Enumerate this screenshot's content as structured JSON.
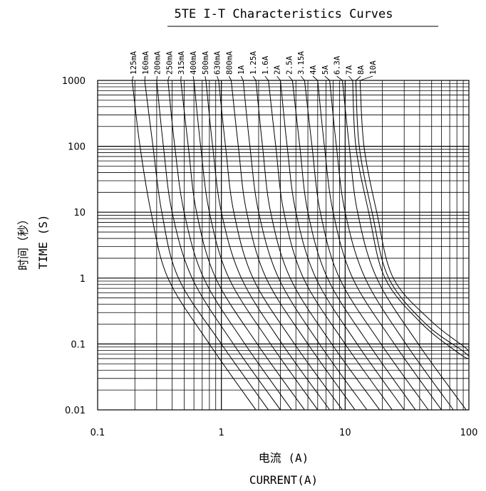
{
  "chart_data": {
    "type": "line",
    "title": "5TE I-T Characteristics Curves",
    "xlabel": "电流 (A)",
    "xlabel_en": "CURRENT(A)",
    "ylabel": "时间（秒）",
    "ylabel_en": "TIME (S)",
    "x_scale": "log",
    "y_scale": "log",
    "xlim": [
      0.1,
      100
    ],
    "ylim": [
      0.01,
      1000
    ],
    "grid": true,
    "x_ticks": [
      "0.1",
      "1",
      "10",
      "100"
    ],
    "y_ticks": [
      "1000",
      "100",
      "10",
      "1",
      "0.1",
      "0.01"
    ],
    "series": [
      {
        "name": "125mA",
        "points": [
          [
            0.19,
            1000
          ],
          [
            0.22,
            100
          ],
          [
            0.27,
            10
          ],
          [
            0.37,
            1
          ],
          [
            0.8,
            0.1
          ],
          [
            1.9,
            0.01
          ]
        ]
      },
      {
        "name": "160mA",
        "points": [
          [
            0.24,
            1000
          ],
          [
            0.28,
            100
          ],
          [
            0.33,
            10
          ],
          [
            0.45,
            1
          ],
          [
            1.0,
            0.1
          ],
          [
            2.4,
            0.01
          ]
        ]
      },
      {
        "name": "200mA",
        "points": [
          [
            0.3,
            1000
          ],
          [
            0.34,
            100
          ],
          [
            0.4,
            10
          ],
          [
            0.58,
            1
          ],
          [
            1.25,
            0.1
          ],
          [
            3.0,
            0.01
          ]
        ]
      },
      {
        "name": "250mA",
        "points": [
          [
            0.37,
            1000
          ],
          [
            0.42,
            100
          ],
          [
            0.5,
            10
          ],
          [
            0.72,
            1
          ],
          [
            1.55,
            0.1
          ],
          [
            3.7,
            0.01
          ]
        ]
      },
      {
        "name": "315mA",
        "points": [
          [
            0.47,
            1000
          ],
          [
            0.54,
            100
          ],
          [
            0.63,
            10
          ],
          [
            0.9,
            1
          ],
          [
            1.95,
            0.1
          ],
          [
            4.7,
            0.01
          ]
        ]
      },
      {
        "name": "400mA",
        "points": [
          [
            0.6,
            1000
          ],
          [
            0.68,
            100
          ],
          [
            0.8,
            10
          ],
          [
            1.15,
            1
          ],
          [
            2.5,
            0.1
          ],
          [
            6.0,
            0.01
          ]
        ]
      },
      {
        "name": "500mA",
        "points": [
          [
            0.75,
            1000
          ],
          [
            0.85,
            100
          ],
          [
            1.0,
            10
          ],
          [
            1.45,
            1
          ],
          [
            3.1,
            0.1
          ],
          [
            7.5,
            0.01
          ]
        ]
      },
      {
        "name": "630mA",
        "points": [
          [
            0.95,
            1000
          ],
          [
            1.08,
            100
          ],
          [
            1.26,
            10
          ],
          [
            1.8,
            1
          ],
          [
            3.9,
            0.1
          ],
          [
            9.5,
            0.01
          ]
        ]
      },
      {
        "name": "800mA",
        "points": [
          [
            1.2,
            1000
          ],
          [
            1.37,
            100
          ],
          [
            1.6,
            10
          ],
          [
            2.3,
            1
          ],
          [
            5.0,
            0.1
          ],
          [
            12,
            0.01
          ]
        ]
      },
      {
        "name": "1A",
        "points": [
          [
            1.5,
            1000
          ],
          [
            1.7,
            100
          ],
          [
            2.0,
            10
          ],
          [
            2.9,
            1
          ],
          [
            6.2,
            0.1
          ],
          [
            15,
            0.01
          ]
        ]
      },
      {
        "name": "1.25A",
        "points": [
          [
            1.9,
            1000
          ],
          [
            2.15,
            100
          ],
          [
            2.5,
            10
          ],
          [
            3.6,
            1
          ],
          [
            7.8,
            0.1
          ],
          [
            19,
            0.01
          ]
        ]
      },
      {
        "name": "1.6A",
        "points": [
          [
            2.4,
            1000
          ],
          [
            2.75,
            100
          ],
          [
            3.2,
            10
          ],
          [
            4.6,
            1
          ],
          [
            10,
            0.1
          ],
          [
            24,
            0.01
          ]
        ]
      },
      {
        "name": "2A",
        "points": [
          [
            3.0,
            1000
          ],
          [
            3.4,
            100
          ],
          [
            4.0,
            10
          ],
          [
            5.8,
            1
          ],
          [
            12.5,
            0.1
          ],
          [
            30,
            0.01
          ]
        ]
      },
      {
        "name": "2.5A",
        "points": [
          [
            3.75,
            1000
          ],
          [
            4.3,
            100
          ],
          [
            5.0,
            10
          ],
          [
            7.2,
            1
          ],
          [
            15.5,
            0.1
          ],
          [
            37,
            0.01
          ]
        ]
      },
      {
        "name": "3.15A",
        "points": [
          [
            4.7,
            1000
          ],
          [
            5.4,
            100
          ],
          [
            6.3,
            10
          ],
          [
            9.0,
            1
          ],
          [
            19.5,
            0.1
          ],
          [
            47,
            0.01
          ]
        ]
      },
      {
        "name": "4A",
        "points": [
          [
            6.0,
            1000
          ],
          [
            6.8,
            100
          ],
          [
            8.0,
            10
          ],
          [
            11.5,
            1
          ],
          [
            25,
            0.1
          ],
          [
            60,
            0.01
          ]
        ]
      },
      {
        "name": "5A",
        "points": [
          [
            7.5,
            1000
          ],
          [
            8.5,
            100
          ],
          [
            10,
            10
          ],
          [
            14.5,
            1
          ],
          [
            31,
            0.1
          ],
          [
            75,
            0.01
          ]
        ]
      },
      {
        "name": "6.3A",
        "points": [
          [
            9.5,
            1000
          ],
          [
            10.8,
            100
          ],
          [
            12.6,
            10
          ],
          [
            18,
            1
          ],
          [
            39,
            0.1
          ],
          [
            95,
            0.01
          ]
        ]
      },
      {
        "name": "7A",
        "points": [
          [
            11.5,
            1000
          ],
          [
            12.2,
            100
          ],
          [
            15.5,
            10
          ],
          [
            21,
            1
          ],
          [
            42,
            0.2
          ],
          [
            85,
            0.07
          ],
          [
            100,
            0.06
          ]
        ]
      },
      {
        "name": "8A",
        "points": [
          [
            12.2,
            1000
          ],
          [
            13.0,
            100
          ],
          [
            16.5,
            10
          ],
          [
            22.5,
            1
          ],
          [
            45,
            0.2
          ],
          [
            88,
            0.08
          ],
          [
            100,
            0.065
          ]
        ]
      },
      {
        "name": "10A",
        "points": [
          [
            13.2,
            1000
          ],
          [
            14.2,
            100
          ],
          [
            18,
            10
          ],
          [
            24.5,
            1
          ],
          [
            50,
            0.22
          ],
          [
            92,
            0.09
          ],
          [
            100,
            0.075
          ]
        ]
      }
    ]
  }
}
